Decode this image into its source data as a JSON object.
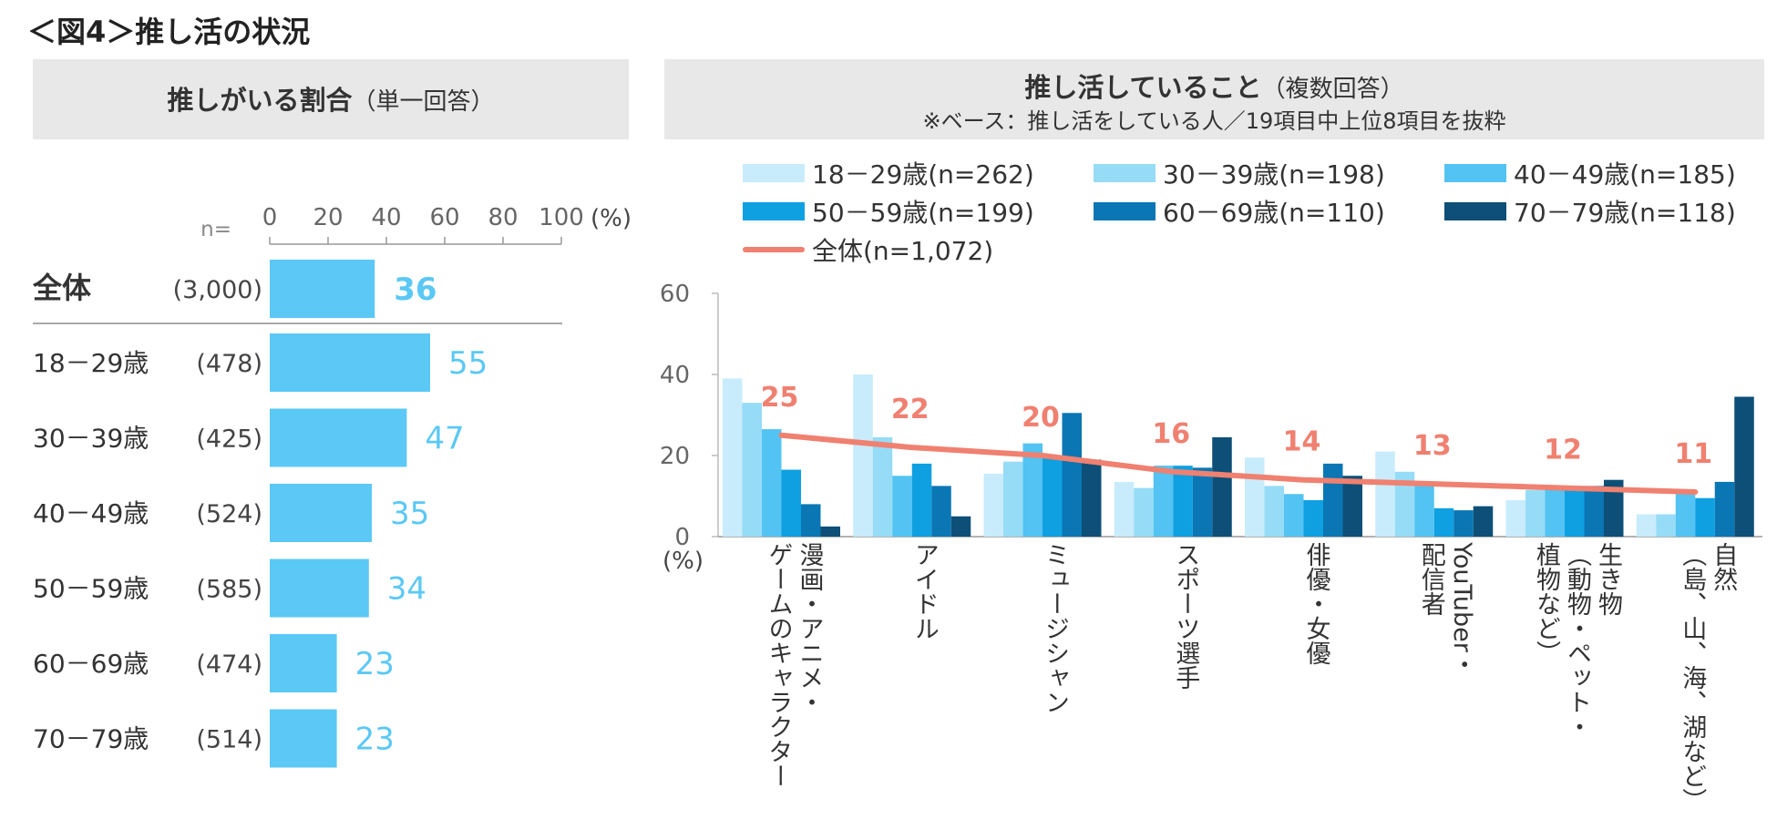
{
  "figure_title": "＜図4＞推し活の状況",
  "left_panel": {
    "title": "推しがいる割合",
    "subtitle": "（単一回答）"
  },
  "right_panel": {
    "title": "推し活していること",
    "subtitle": "（複数回答）",
    "note": "※ベース：推し活をしている人／19項目中上位8項目を抜粋"
  },
  "colors": {
    "left_bar": "#5bc8f5",
    "left_label_text": "#5bc8f5",
    "total_line": "#f08070",
    "series": [
      "#c8ecfb",
      "#96dcf7",
      "#52c3f2",
      "#0fa0e1",
      "#0a76b4",
      "#0d4f77"
    ]
  },
  "chart_data": [
    {
      "type": "bar",
      "orientation": "horizontal",
      "title": "推しがいる割合",
      "n_label": "n=",
      "unit_label": "(%)",
      "xlim": [
        0,
        100
      ],
      "xticks": [
        "0",
        "20",
        "40",
        "60",
        "80",
        "100"
      ],
      "categories": [
        "全体",
        "18－29歳",
        "30－39歳",
        "40－49歳",
        "50－59歳",
        "60－69歳",
        "70－79歳"
      ],
      "n": [
        "(3,000)",
        "(478)",
        "(425)",
        "(524)",
        "(585)",
        "(474)",
        "(514)"
      ],
      "values": [
        36,
        55,
        47,
        35,
        34,
        23,
        23
      ]
    },
    {
      "type": "bar",
      "title": "推し活していること",
      "ylabel": "(%)",
      "ylim": [
        0,
        60
      ],
      "yticks": [
        "0",
        "20",
        "40",
        "60"
      ],
      "categories": [
        "漫画・アニメ・ゲームのキャラクター",
        "アイドル",
        "ミュージシャン",
        "スポーツ選手",
        "俳優・女優",
        "YouTuber・配信者",
        "生き物（動物・ペット・植物など）",
        "自然（島、山、海、湖など）"
      ],
      "category_lines": [
        [
          "漫画・アニメ・",
          "ゲームのキャラクター"
        ],
        [
          "アイドル"
        ],
        [
          "ミュージシャン"
        ],
        [
          "スポーツ選手"
        ],
        [
          "俳優・女優"
        ],
        [
          "YouTuber・",
          "配信者"
        ],
        [
          "生き物",
          "（動物・ペット・",
          "植物など）"
        ],
        [
          "自然",
          "（島、山、海、湖など）"
        ]
      ],
      "series": [
        {
          "name": "18－29歳(n=262)",
          "values": [
            39,
            40,
            15.5,
            13.5,
            19.5,
            21,
            9,
            5.5
          ]
        },
        {
          "name": "30－39歳(n=198)",
          "values": [
            33,
            24.5,
            18.5,
            12,
            12.5,
            16,
            11.5,
            5.5
          ]
        },
        {
          "name": "40－49歳(n=185)",
          "values": [
            26.5,
            15,
            23,
            17.5,
            10.5,
            12.5,
            12.5,
            10.5
          ]
        },
        {
          "name": "50－59歳(n=199)",
          "values": [
            16.5,
            18,
            19.5,
            17.5,
            9,
            7,
            11.5,
            9.5
          ]
        },
        {
          "name": "60－69歳(n=110)",
          "values": [
            8,
            12.5,
            30.5,
            17,
            18,
            6.5,
            12.5,
            13.5
          ]
        },
        {
          "name": "70－79歳(n=118)",
          "values": [
            2.5,
            5,
            19,
            24.5,
            15,
            7.5,
            14,
            34.5
          ]
        }
      ],
      "line": {
        "name": "全体(n=1,072)",
        "values": [
          25,
          22,
          20,
          16,
          14,
          13,
          12,
          11
        ]
      }
    }
  ]
}
